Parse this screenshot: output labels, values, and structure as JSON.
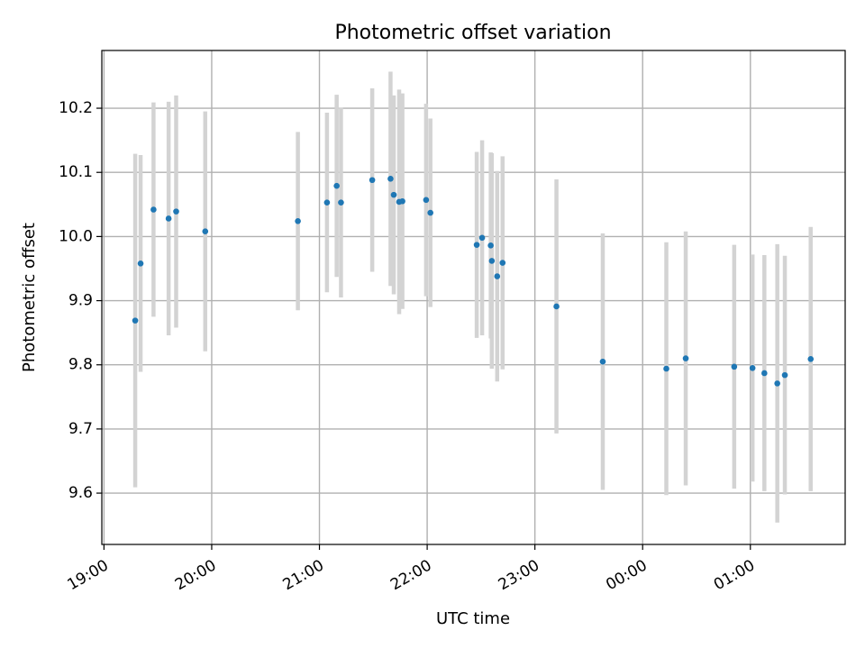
{
  "chart_data": {
    "type": "scatter",
    "title": "Photometric offset variation",
    "xlabel": "UTC time",
    "ylabel": "Photometric offset",
    "x_unit": "hours since 19:00 UTC",
    "xlim": [
      -0.02,
      6.88
    ],
    "ylim": [
      9.52,
      10.29
    ],
    "grid": true,
    "x_ticks": [
      {
        "value": 0,
        "label": "19:00"
      },
      {
        "value": 1,
        "label": "20:00"
      },
      {
        "value": 2,
        "label": "21:00"
      },
      {
        "value": 3,
        "label": "22:00"
      },
      {
        "value": 4,
        "label": "23:00"
      },
      {
        "value": 5,
        "label": "00:00"
      },
      {
        "value": 6,
        "label": "01:00"
      }
    ],
    "y_ticks": [
      {
        "value": 9.6,
        "label": "9.6"
      },
      {
        "value": 9.7,
        "label": "9.7"
      },
      {
        "value": 9.8,
        "label": "9.8"
      },
      {
        "value": 9.9,
        "label": "9.9"
      },
      {
        "value": 10.0,
        "label": "10.0"
      },
      {
        "value": 10.1,
        "label": "10.1"
      },
      {
        "value": 10.2,
        "label": "10.2"
      }
    ],
    "colors": {
      "point": "#1f77b4",
      "errorbar": "#d3d3d3",
      "grid": "#b0b0b0"
    },
    "series": [
      {
        "points": [
          {
            "x": 0.29,
            "y": 9.869,
            "err": 0.26
          },
          {
            "x": 0.34,
            "y": 9.958,
            "err": 0.169
          },
          {
            "x": 0.46,
            "y": 10.042,
            "err": 0.167
          },
          {
            "x": 0.6,
            "y": 10.028,
            "err": 0.182
          },
          {
            "x": 0.67,
            "y": 10.039,
            "err": 0.181
          },
          {
            "x": 0.94,
            "y": 10.008,
            "err": 0.187
          },
          {
            "x": 1.8,
            "y": 10.024,
            "err": 0.139
          },
          {
            "x": 2.07,
            "y": 10.053,
            "err": 0.14
          },
          {
            "x": 2.16,
            "y": 10.079,
            "err": 0.142
          },
          {
            "x": 2.2,
            "y": 10.053,
            "err": 0.148
          },
          {
            "x": 2.49,
            "y": 10.088,
            "err": 0.143
          },
          {
            "x": 2.66,
            "y": 10.09,
            "err": 0.167
          },
          {
            "x": 2.69,
            "y": 10.065,
            "err": 0.155
          },
          {
            "x": 2.74,
            "y": 10.054,
            "err": 0.175
          },
          {
            "x": 2.77,
            "y": 10.055,
            "err": 0.168
          },
          {
            "x": 2.99,
            "y": 10.057,
            "err": 0.15
          },
          {
            "x": 3.03,
            "y": 10.037,
            "err": 0.147
          },
          {
            "x": 3.46,
            "y": 9.987,
            "err": 0.145
          },
          {
            "x": 3.51,
            "y": 9.998,
            "err": 0.152
          },
          {
            "x": 3.59,
            "y": 9.986,
            "err": 0.145
          },
          {
            "x": 3.6,
            "y": 9.962,
            "err": 0.168
          },
          {
            "x": 3.65,
            "y": 9.938,
            "err": 0.164
          },
          {
            "x": 3.7,
            "y": 9.959,
            "err": 0.166
          },
          {
            "x": 4.2,
            "y": 9.891,
            "err": 0.198
          },
          {
            "x": 4.63,
            "y": 9.805,
            "err": 0.2
          },
          {
            "x": 5.22,
            "y": 9.794,
            "err": 0.197
          },
          {
            "x": 5.4,
            "y": 9.81,
            "err": 0.198
          },
          {
            "x": 5.85,
            "y": 9.797,
            "err": 0.19
          },
          {
            "x": 6.02,
            "y": 9.795,
            "err": 0.177
          },
          {
            "x": 6.13,
            "y": 9.787,
            "err": 0.184
          },
          {
            "x": 6.25,
            "y": 9.771,
            "err": 0.217
          },
          {
            "x": 6.32,
            "y": 9.784,
            "err": 0.186
          },
          {
            "x": 6.56,
            "y": 9.809,
            "err": 0.206
          }
        ]
      }
    ]
  }
}
